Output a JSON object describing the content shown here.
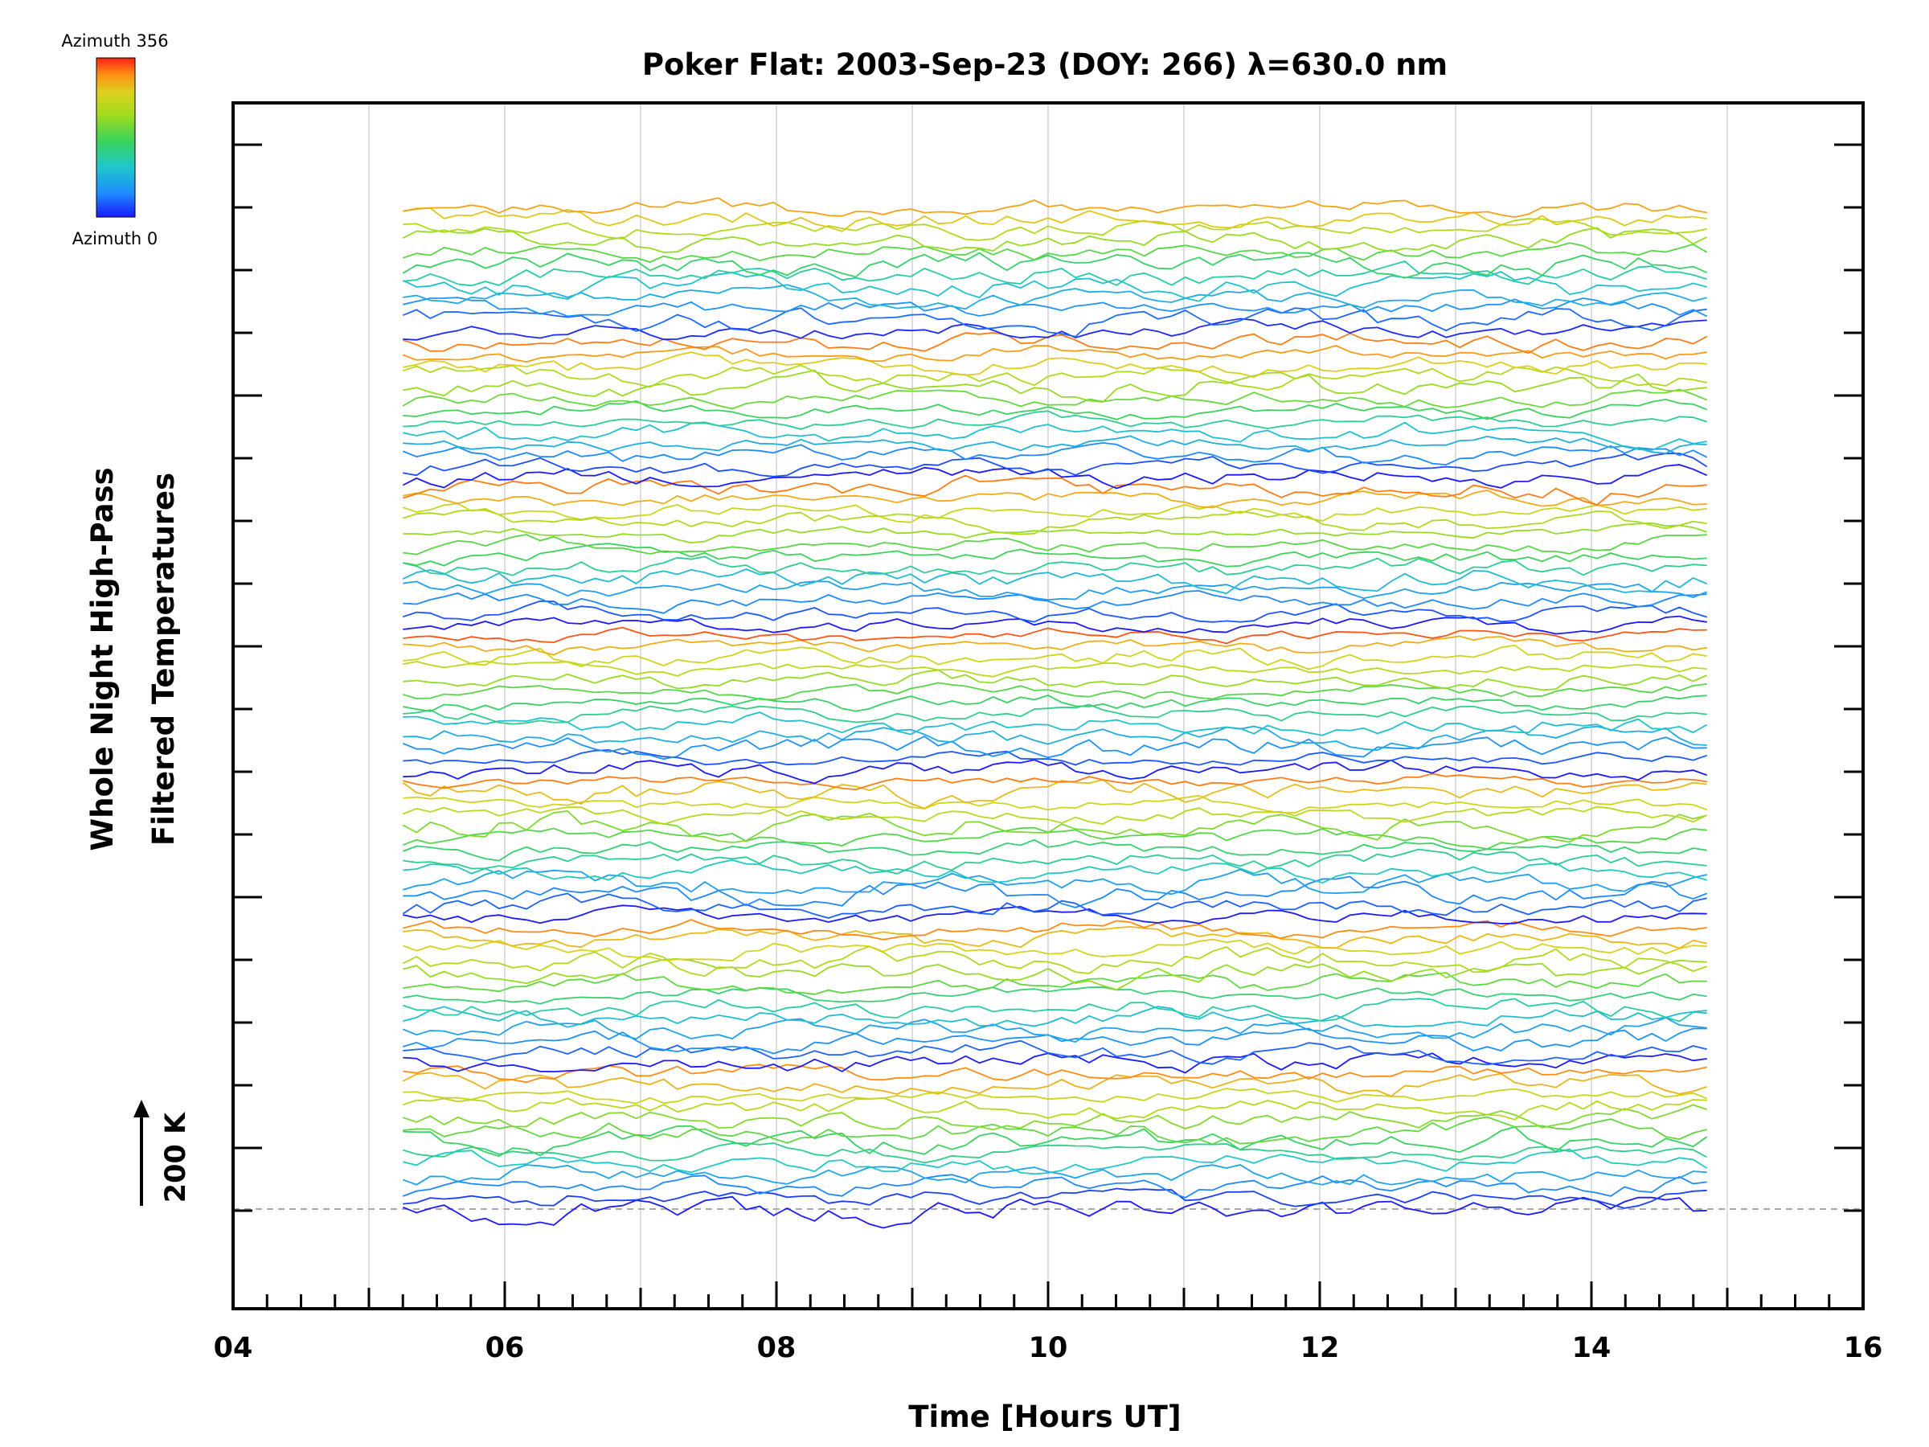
{
  "chart_data": {
    "type": "line",
    "title": "Poker Flat: 2003-Sep-23 (DOY: 266) λ=630.0 nm",
    "xlabel": "Time [Hours UT]",
    "ylabel_line1": "Whole Night High-Pass",
    "ylabel_line2": "Filtered Temperatures",
    "xlim": [
      4,
      16
    ],
    "x_ticks": [
      "04",
      "06",
      "08",
      "10",
      "12",
      "14",
      "16"
    ],
    "x_data_range": [
      5.25,
      14.85
    ],
    "grid": "vertical lines at each hour",
    "scale_bar": {
      "label": "200 K",
      "value": 200
    },
    "colorbar": {
      "max_label": "Azimuth 356",
      "min_label": "Azimuth 0",
      "colormap": "rainbow",
      "position": "top-left"
    },
    "series_count": 90,
    "series_azimuth_range": [
      0,
      356
    ],
    "series_colormap": [
      "#1a1aff",
      "#1e8cff",
      "#20c8c8",
      "#3cd25a",
      "#a0dc1e",
      "#dcd21e",
      "#ff8c14",
      "#ff1e14"
    ],
    "baseline_color": "#aaaaaa",
    "grid_color": "#d2d2d2"
  }
}
